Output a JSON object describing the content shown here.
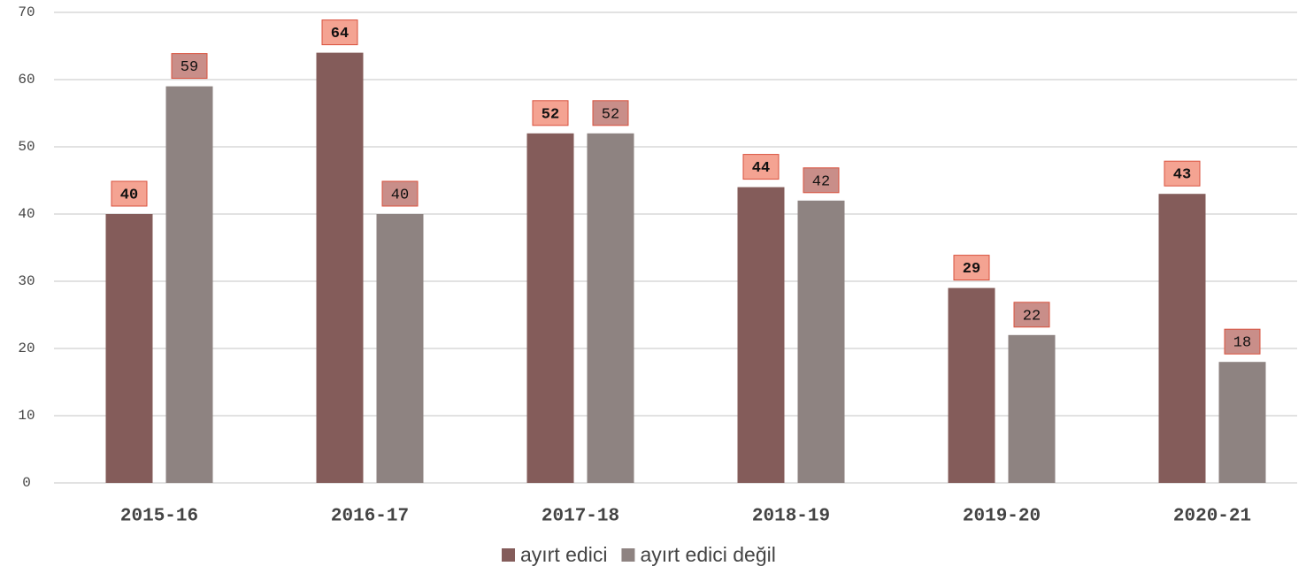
{
  "chart_data": {
    "type": "bar",
    "categories": [
      "2015-16",
      "2016-17",
      "2017-18",
      "2018-19",
      "2019-20",
      "2020-21"
    ],
    "series": [
      {
        "name": "ayırt edici",
        "color": "#845c5a",
        "label_fill": "#f4a392",
        "values": [
          40,
          64,
          52,
          44,
          29,
          43
        ]
      },
      {
        "name": "ayırt edici değil",
        "color": "#8e8381",
        "label_fill": "#c98e89",
        "values": [
          59,
          40,
          52,
          42,
          22,
          18
        ]
      }
    ],
    "ylim": [
      0,
      70
    ],
    "yticks": [
      0,
      10,
      20,
      30,
      40,
      50,
      60,
      70
    ],
    "grid": true,
    "legend": "bottom"
  }
}
